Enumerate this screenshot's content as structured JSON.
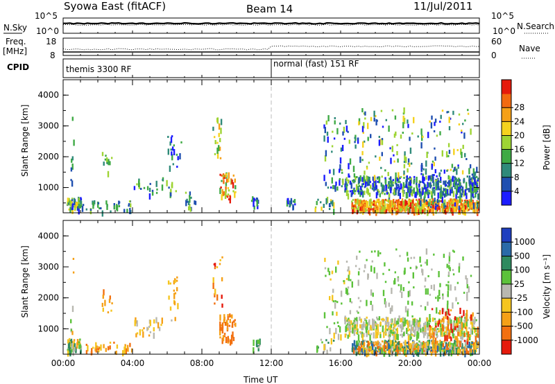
{
  "header": {
    "station": "Syowa East (fitACF)",
    "beam": "Beam 14",
    "date": "11/Jul/2011"
  },
  "top_panel": {
    "nsky_label": "N.Sky",
    "nsky_ticks": [
      "10^5",
      "10^0"
    ],
    "nsearch_label": "N.Search",
    "nsearch_ticks": [
      "10^5",
      "10^0"
    ]
  },
  "freq_panel": {
    "freq_label": "Freq.",
    "freq_unit": "[MHz]",
    "freq_ticks": [
      "18",
      "8"
    ],
    "nave_label": "Nave",
    "nave_ticks": [
      "60",
      "0"
    ]
  },
  "cpid_panel": {
    "label": "CPID",
    "mode1": "themis 3300 RF",
    "mode2": "normal (fast) 151 RF"
  },
  "chart_data": [
    {
      "type": "heatmap",
      "title": "Power",
      "xlabel": "Time UT",
      "ylabel": "Slant Range [km]",
      "x_ticks": [
        "00:00",
        "04:00",
        "08:00",
        "12:00",
        "16:00",
        "20:00",
        "00:00"
      ],
      "xlim_hours": [
        0,
        24
      ],
      "y_ticks": [
        "1000",
        "2000",
        "3000",
        "4000"
      ],
      "ylim": [
        180,
        4500
      ],
      "colorbar_label": "Power [dB]",
      "colorbar_ticks": [
        "4",
        "8",
        "12",
        "16",
        "20",
        "24",
        "28"
      ],
      "colorbar_colors": [
        "#1c1cff",
        "#1f4fb0",
        "#2f8a7a",
        "#3faa45",
        "#9ed434",
        "#f5d21e",
        "#f5a017",
        "#f26a10",
        "#e51a0c"
      ],
      "clusters": [
        {
          "t": [
            0.2,
            1.0
          ],
          "r": [
            300,
            700
          ],
          "n": 55,
          "lvl": [
            0,
            5
          ],
          "seed": 1
        },
        {
          "t": [
            0.4,
            0.6
          ],
          "r": [
            900,
            3300
          ],
          "n": 8,
          "lvl": [
            1,
            4
          ],
          "seed": 2
        },
        {
          "t": [
            1.0,
            4.0
          ],
          "r": [
            250,
            600
          ],
          "n": 35,
          "lvl": [
            1,
            4
          ],
          "seed": 3
        },
        {
          "t": [
            2.2,
            2.8
          ],
          "r": [
            1500,
            2400
          ],
          "n": 10,
          "lvl": [
            2,
            5
          ],
          "seed": 4
        },
        {
          "t": [
            4.0,
            6.5
          ],
          "r": [
            800,
            1400
          ],
          "n": 28,
          "lvl": [
            0,
            4
          ],
          "seed": 5
        },
        {
          "t": [
            6.0,
            6.8
          ],
          "r": [
            1700,
            2700
          ],
          "n": 18,
          "lvl": [
            0,
            3
          ],
          "seed": 6
        },
        {
          "t": [
            7.0,
            7.6
          ],
          "r": [
            300,
            900
          ],
          "n": 16,
          "lvl": [
            1,
            4
          ],
          "seed": 7
        },
        {
          "t": [
            8.6,
            9.2
          ],
          "r": [
            1800,
            3400
          ],
          "n": 18,
          "lvl": [
            2,
            6
          ],
          "seed": 8
        },
        {
          "t": [
            9.0,
            9.9
          ],
          "r": [
            650,
            1500
          ],
          "n": 45,
          "lvl": [
            3,
            8
          ],
          "seed": 9
        },
        {
          "t": [
            10.8,
            11.3
          ],
          "r": [
            400,
            800
          ],
          "n": 12,
          "lvl": [
            0,
            3
          ],
          "seed": 10
        },
        {
          "t": [
            12.6,
            13.4
          ],
          "r": [
            400,
            700
          ],
          "n": 12,
          "lvl": [
            0,
            3
          ],
          "seed": 11
        },
        {
          "t": [
            14.5,
            15.6
          ],
          "r": [
            300,
            700
          ],
          "n": 18,
          "lvl": [
            1,
            5
          ],
          "seed": 12
        },
        {
          "t": [
            15.0,
            16.6
          ],
          "r": [
            800,
            3400
          ],
          "n": 55,
          "lvl": [
            0,
            4
          ],
          "seed": 13
        },
        {
          "t": [
            16.2,
            23.9
          ],
          "r": [
            800,
            1400
          ],
          "n": 420,
          "lvl": [
            0,
            4
          ],
          "seed": 14
        },
        {
          "t": [
            16.6,
            23.9
          ],
          "r": [
            280,
            650
          ],
          "n": 520,
          "lvl": [
            4,
            8
          ],
          "seed": 15
        },
        {
          "t": [
            16.5,
            23.5
          ],
          "r": [
            1400,
            3600
          ],
          "n": 160,
          "lvl": [
            0,
            5
          ],
          "seed": 16
        },
        {
          "t": [
            20.5,
            23.9
          ],
          "r": [
            400,
            1800
          ],
          "n": 90,
          "lvl": [
            0,
            3
          ],
          "seed": 17
        }
      ]
    },
    {
      "type": "heatmap",
      "title": "Velocity",
      "xlabel": "Time UT",
      "ylabel": "Slant Range [km]",
      "x_ticks": [
        "00:00",
        "04:00",
        "08:00",
        "12:00",
        "16:00",
        "20:00",
        "00:00"
      ],
      "xlim_hours": [
        0,
        24
      ],
      "y_ticks": [
        "1000",
        "2000",
        "3000",
        "4000"
      ],
      "ylim": [
        180,
        4500
      ],
      "colorbar_label": "Velocity [m s⁻¹]",
      "colorbar_ticks": [
        "1000",
        "500",
        "100",
        "25",
        "-25",
        "-100",
        "-500",
        "-1000"
      ],
      "colorbar_colors": [
        "#1f3fbf",
        "#2a6aa8",
        "#2f8a5f",
        "#5cc23a",
        "#b8b8b0",
        "#f5c520",
        "#f5a017",
        "#f27010",
        "#e51a0c"
      ],
      "clusters": [
        {
          "t": [
            0.2,
            1.0
          ],
          "r": [
            300,
            700
          ],
          "n": 50,
          "lvl": [
            2,
            6
          ],
          "seed": 21
        },
        {
          "t": [
            0.4,
            0.6
          ],
          "r": [
            900,
            3300
          ],
          "n": 7,
          "lvl": [
            3,
            6
          ],
          "seed": 22
        },
        {
          "t": [
            1.0,
            4.0
          ],
          "r": [
            250,
            600
          ],
          "n": 32,
          "lvl": [
            5,
            7
          ],
          "seed": 23
        },
        {
          "t": [
            2.2,
            2.8
          ],
          "r": [
            1500,
            2400
          ],
          "n": 10,
          "lvl": [
            5,
            7
          ],
          "seed": 24
        },
        {
          "t": [
            4.0,
            6.5
          ],
          "r": [
            800,
            1400
          ],
          "n": 26,
          "lvl": [
            4,
            6
          ],
          "seed": 25
        },
        {
          "t": [
            6.0,
            6.8
          ],
          "r": [
            1700,
            2700
          ],
          "n": 16,
          "lvl": [
            5,
            6
          ],
          "seed": 26
        },
        {
          "t": [
            8.6,
            9.2
          ],
          "r": [
            1800,
            3400
          ],
          "n": 16,
          "lvl": [
            5,
            8
          ],
          "seed": 28
        },
        {
          "t": [
            9.0,
            9.9
          ],
          "r": [
            650,
            1500
          ],
          "n": 45,
          "lvl": [
            6,
            7
          ],
          "seed": 29
        },
        {
          "t": [
            10.8,
            11.3
          ],
          "r": [
            400,
            800
          ],
          "n": 12,
          "lvl": [
            2,
            4
          ],
          "seed": 30
        },
        {
          "t": [
            14.5,
            15.6
          ],
          "r": [
            300,
            700
          ],
          "n": 16,
          "lvl": [
            2,
            5
          ],
          "seed": 32
        },
        {
          "t": [
            15.0,
            16.6
          ],
          "r": [
            800,
            3400
          ],
          "n": 50,
          "lvl": [
            3,
            5
          ],
          "seed": 33
        },
        {
          "t": [
            16.2,
            23.9
          ],
          "r": [
            800,
            1400
          ],
          "n": 420,
          "lvl": [
            3,
            5
          ],
          "seed": 34
        },
        {
          "t": [
            16.6,
            23.9
          ],
          "r": [
            280,
            650
          ],
          "n": 520,
          "lvl": [
            1,
            7
          ],
          "seed": 35
        },
        {
          "t": [
            16.5,
            23.5
          ],
          "r": [
            1400,
            3600
          ],
          "n": 150,
          "lvl": [
            3,
            4
          ],
          "seed": 36
        },
        {
          "t": [
            21.0,
            23.9
          ],
          "r": [
            600,
            1700
          ],
          "n": 70,
          "lvl": [
            6,
            8
          ],
          "seed": 37
        }
      ]
    }
  ]
}
